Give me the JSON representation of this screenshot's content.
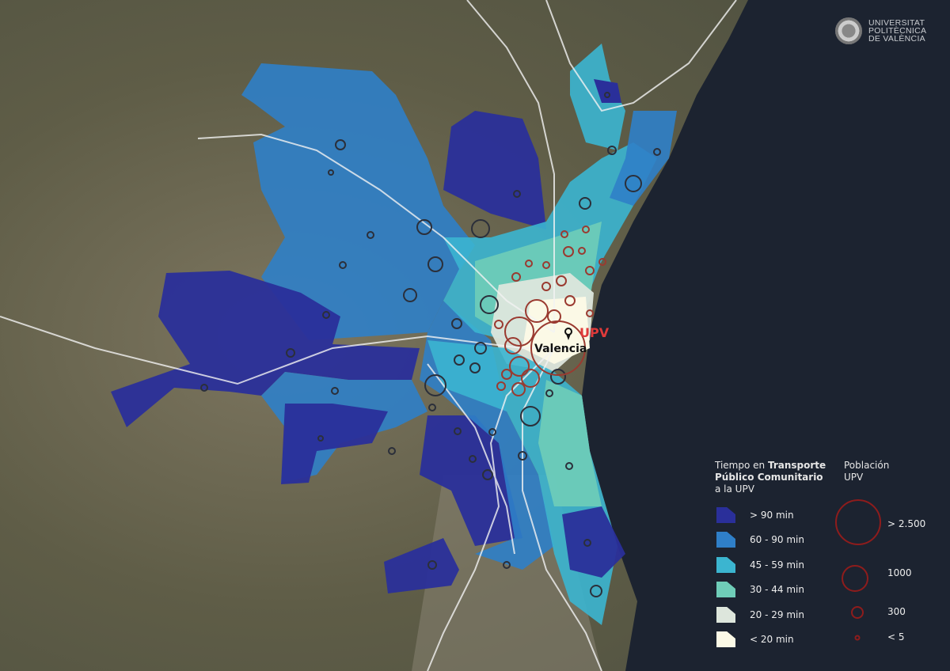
{
  "logo": {
    "line1": "UNIVERSITAT",
    "line2": "POLITÈCNICA",
    "line3": "DE VALÈNCIA"
  },
  "map_labels": {
    "city": "Valencia",
    "destination": "UPV"
  },
  "legend": {
    "title_prefix": "Tiempo en ",
    "title_bold": "Transporte Público Comunitario",
    "title_suffix": "a la UPV",
    "classes": [
      {
        "label": "> 90 min",
        "color": "#2a2f9a"
      },
      {
        "label": "60 - 90 min",
        "color": "#2f7fc8"
      },
      {
        "label": "45 - 59 min",
        "color": "#3bb5d0"
      },
      {
        "label": "30 - 44 min",
        "color": "#6fcdb8"
      },
      {
        "label": "20 - 29 min",
        "color": "#dde6dc"
      },
      {
        "label": "< 20 min",
        "color": "#fbf9e6"
      }
    ]
  },
  "population_legend": {
    "title": "Población UPV",
    "color": "#8e1c1c",
    "sizes": [
      {
        "label": "> 2.500"
      },
      {
        "label": "1000"
      },
      {
        "label": "300"
      },
      {
        "label": "< 5"
      }
    ]
  },
  "colors": {
    "sea": "#1c2330",
    "terrain": "#6b6a52",
    "roads": "#ffffff",
    "upv_marker": "#e03a3a"
  }
}
